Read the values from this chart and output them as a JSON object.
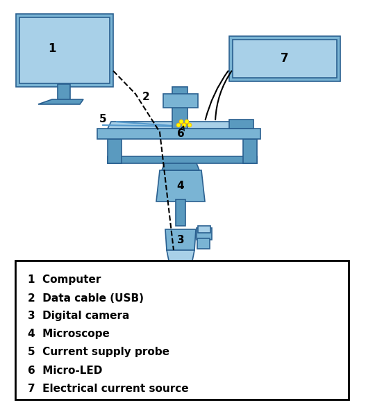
{
  "bg_color": "#ffffff",
  "blue": "#7ab4d4",
  "blue_dark": "#5a9abf",
  "blue_light": "#a8d0e8",
  "legend_items": [
    "1  Computer",
    "2  Data cable (USB)",
    "3  Digital camera",
    "4  Microscope",
    "5  Current supply probe",
    "6  Micro-LED",
    "7  Electrical current source"
  ],
  "label_fontsize": 11,
  "title": ""
}
